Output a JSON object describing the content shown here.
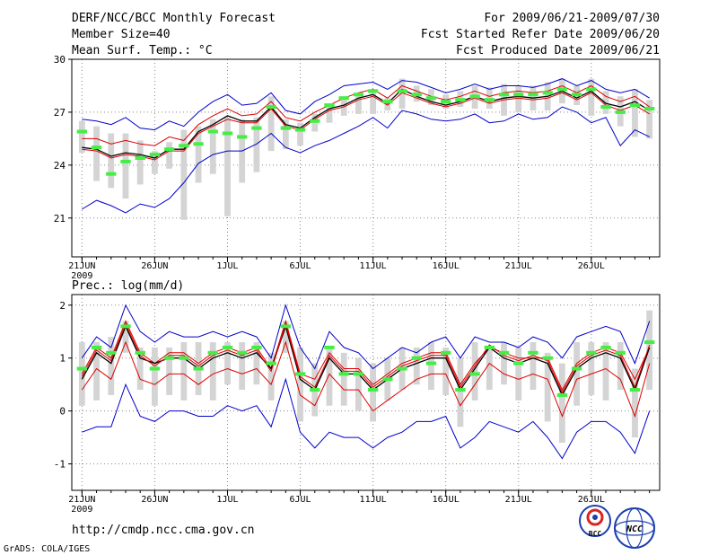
{
  "header": {
    "title": "DERF/NCC/BCC Monthly Forecast",
    "member_size": "Member Size=40",
    "variable": "Mean Surf. Temp.: °C",
    "period": "For 2009/06/21-2009/07/30",
    "fcst_started": "Fcst Started Refer Date 2009/06/20",
    "fcst_produced": "Fcst Produced Date 2009/06/21"
  },
  "footer": {
    "url": "http://cmdp.ncc.cma.gov.cn",
    "grads_credit": "GrADS: COLA/IGES",
    "logo_bcc_text": "BCC",
    "logo_ncc_text": "NCC"
  },
  "colors": {
    "envelope": "#0000cc",
    "lower_quantile": "#dd0000",
    "mean": "#000000",
    "box": "#d4d4d4",
    "marker": "#44ee44",
    "grid": "#888888"
  },
  "chart_data": [
    {
      "id": "temp",
      "type": "line",
      "title": "Mean Surf. Temp.: °C",
      "ylim": [
        18.8,
        30
      ],
      "yticks": [
        21,
        24,
        27,
        30
      ],
      "xlim": [
        0.3,
        40.7
      ],
      "xticks": [
        {
          "day": 1,
          "label": "21JUN"
        },
        {
          "day": 6,
          "label": "26JUN"
        },
        {
          "day": 11,
          "label": "1JUL"
        },
        {
          "day": 16,
          "label": "6JUL"
        },
        {
          "day": 21,
          "label": "11JUL"
        },
        {
          "day": 26,
          "label": "16JUL"
        },
        {
          "day": 31,
          "label": "21JUL"
        },
        {
          "day": 36,
          "label": "26JUL"
        }
      ],
      "year_label": "2009",
      "days": [
        1,
        2,
        3,
        4,
        5,
        6,
        7,
        8,
        9,
        10,
        11,
        12,
        13,
        14,
        15,
        16,
        17,
        18,
        19,
        20,
        21,
        22,
        23,
        24,
        25,
        26,
        27,
        28,
        29,
        30,
        31,
        32,
        33,
        34,
        35,
        36,
        37,
        38,
        39,
        40
      ],
      "series": [
        {
          "name": "max",
          "color": "#0000cc",
          "values": [
            26.6,
            26.5,
            26.3,
            26.7,
            26.1,
            26.0,
            26.5,
            26.2,
            27.0,
            27.6,
            28.0,
            27.4,
            27.5,
            28.1,
            27.1,
            26.9,
            27.6,
            28.0,
            28.5,
            28.6,
            28.7,
            28.3,
            28.8,
            28.7,
            28.4,
            28.1,
            28.3,
            28.6,
            28.3,
            28.5,
            28.5,
            28.4,
            28.6,
            28.9,
            28.5,
            28.8,
            28.3,
            28.1,
            28.3,
            27.8
          ]
        },
        {
          "name": "upper",
          "color": "#dd0000",
          "values": [
            25.5,
            25.5,
            25.2,
            25.4,
            25.2,
            25.1,
            25.6,
            25.4,
            26.3,
            26.8,
            27.2,
            26.8,
            26.9,
            27.6,
            26.7,
            26.5,
            27.0,
            27.4,
            27.8,
            28.1,
            28.3,
            27.8,
            28.5,
            28.2,
            27.9,
            27.7,
            27.9,
            28.2,
            27.9,
            28.1,
            28.2,
            28.1,
            28.2,
            28.5,
            28.1,
            28.5,
            27.9,
            27.6,
            27.9,
            27.3
          ]
        },
        {
          "name": "mean",
          "color": "#000000",
          "values": [
            25.0,
            24.9,
            24.5,
            24.7,
            24.6,
            24.4,
            24.9,
            24.9,
            25.9,
            26.3,
            26.8,
            26.5,
            26.5,
            27.3,
            26.3,
            26.1,
            26.7,
            27.2,
            27.4,
            27.8,
            28.0,
            27.5,
            28.3,
            27.9,
            27.6,
            27.4,
            27.6,
            27.9,
            27.6,
            27.8,
            27.9,
            27.8,
            27.9,
            28.2,
            27.8,
            28.2,
            27.5,
            27.3,
            27.6,
            27.1
          ]
        },
        {
          "name": "lower",
          "color": "#dd0000",
          "values": [
            24.9,
            24.8,
            24.4,
            24.6,
            24.5,
            24.3,
            24.8,
            24.8,
            25.8,
            26.2,
            26.6,
            26.4,
            26.4,
            27.2,
            26.2,
            26.0,
            26.6,
            27.1,
            27.3,
            27.7,
            27.9,
            27.4,
            28.1,
            27.8,
            27.5,
            27.3,
            27.5,
            27.8,
            27.5,
            27.7,
            27.8,
            27.7,
            27.8,
            28.1,
            27.7,
            28.1,
            27.4,
            27.1,
            27.4,
            26.9
          ]
        },
        {
          "name": "min",
          "color": "#0000cc",
          "values": [
            21.5,
            22.0,
            21.7,
            21.3,
            21.8,
            21.6,
            22.1,
            23.0,
            24.1,
            24.6,
            24.8,
            24.8,
            25.2,
            25.8,
            25.0,
            24.7,
            25.1,
            25.4,
            25.8,
            26.2,
            26.7,
            26.1,
            27.1,
            26.9,
            26.6,
            26.5,
            26.6,
            26.9,
            26.4,
            26.5,
            26.9,
            26.6,
            26.7,
            27.3,
            27.0,
            26.4,
            26.7,
            25.1,
            26.0,
            25.6
          ]
        }
      ],
      "boxes": {
        "low": [
          24.7,
          23.1,
          22.7,
          22.1,
          22.9,
          23.5,
          23.8,
          20.9,
          23.0,
          23.5,
          21.1,
          23.0,
          23.6,
          24.8,
          24.9,
          25.1,
          25.9,
          26.4,
          26.8,
          26.9,
          26.9,
          27.1,
          27.2,
          27.6,
          27.4,
          27.2,
          27.3,
          27.2,
          27.2,
          26.8,
          27.0,
          27.1,
          27.1,
          27.5,
          27.4,
          26.8,
          26.9,
          26.2,
          25.6,
          25.5
        ],
        "high": [
          26.5,
          26.2,
          25.8,
          25.8,
          25.4,
          24.8,
          25.3,
          26.0,
          26.2,
          26.6,
          26.7,
          26.6,
          26.7,
          27.9,
          26.6,
          26.4,
          26.9,
          27.3,
          27.9,
          28.0,
          28.2,
          27.8,
          28.9,
          28.5,
          28.3,
          28.0,
          28.2,
          28.5,
          28.4,
          28.6,
          28.5,
          28.5,
          28.7,
          28.9,
          28.5,
          28.9,
          28.2,
          27.9,
          28.3,
          27.7
        ]
      },
      "markers": [
        25.9,
        25.0,
        23.5,
        24.2,
        24.4,
        24.6,
        24.9,
        25.1,
        25.2,
        25.9,
        25.8,
        25.6,
        26.1,
        27.3,
        26.1,
        26.0,
        26.5,
        27.4,
        27.8,
        28.0,
        28.2,
        27.6,
        28.2,
        28.0,
        27.8,
        27.6,
        27.7,
        27.9,
        27.7,
        28.0,
        28.0,
        28.0,
        28.1,
        28.3,
        28.0,
        28.3,
        27.3,
        27.0,
        27.4,
        27.2
      ]
    },
    {
      "id": "prec",
      "type": "line",
      "title": "Prec.: log(mm/d)",
      "ylim": [
        -1.5,
        2.2
      ],
      "yticks": [
        -1,
        0,
        1,
        2
      ],
      "xlim": [
        0.3,
        40.7
      ],
      "xticks": [
        {
          "day": 1,
          "label": "21JUN"
        },
        {
          "day": 6,
          "label": "26JUN"
        },
        {
          "day": 11,
          "label": "1JUL"
        },
        {
          "day": 16,
          "label": "6JUL"
        },
        {
          "day": 21,
          "label": "11JUL"
        },
        {
          "day": 26,
          "label": "16JUL"
        },
        {
          "day": 31,
          "label": "21JUL"
        },
        {
          "day": 36,
          "label": "26JUL"
        }
      ],
      "year_label": "2009",
      "days": [
        1,
        2,
        3,
        4,
        5,
        6,
        7,
        8,
        9,
        10,
        11,
        12,
        13,
        14,
        15,
        16,
        17,
        18,
        19,
        20,
        21,
        22,
        23,
        24,
        25,
        26,
        27,
        28,
        29,
        30,
        31,
        32,
        33,
        34,
        35,
        36,
        37,
        38,
        39,
        40
      ],
      "series": [
        {
          "name": "max",
          "color": "#0000cc",
          "values": [
            1.0,
            1.4,
            1.2,
            2.0,
            1.5,
            1.3,
            1.5,
            1.4,
            1.4,
            1.5,
            1.4,
            1.5,
            1.4,
            1.0,
            2.0,
            1.2,
            0.8,
            1.5,
            1.2,
            1.1,
            0.8,
            1.0,
            1.2,
            1.1,
            1.3,
            1.4,
            1.0,
            1.4,
            1.3,
            1.3,
            1.2,
            1.4,
            1.3,
            1.0,
            1.4,
            1.5,
            1.6,
            1.5,
            0.9,
            1.7
          ]
        },
        {
          "name": "upper",
          "color": "#dd0000",
          "values": [
            0.7,
            1.2,
            1.0,
            1.7,
            1.1,
            0.9,
            1.1,
            1.1,
            0.9,
            1.1,
            1.2,
            1.1,
            1.2,
            0.8,
            1.7,
            0.7,
            0.6,
            1.1,
            0.8,
            0.8,
            0.5,
            0.7,
            0.9,
            1.0,
            1.1,
            1.1,
            0.5,
            0.9,
            1.2,
            1.1,
            1.0,
            1.0,
            1.0,
            0.4,
            0.9,
            1.1,
            1.2,
            1.1,
            0.6,
            1.2
          ]
        },
        {
          "name": "mean",
          "color": "#000000",
          "values": [
            0.6,
            1.1,
            0.9,
            1.6,
            1.0,
            0.9,
            1.0,
            1.0,
            0.8,
            1.0,
            1.1,
            1.0,
            1.1,
            0.8,
            1.6,
            0.6,
            0.4,
            1.0,
            0.7,
            0.7,
            0.4,
            0.6,
            0.8,
            0.9,
            1.0,
            1.0,
            0.4,
            0.8,
            1.2,
            1.0,
            0.9,
            1.0,
            0.9,
            0.3,
            0.8,
            1.0,
            1.1,
            1.0,
            0.4,
            1.2
          ]
        },
        {
          "name": "lower",
          "color": "#dd0000",
          "values": [
            0.4,
            0.8,
            0.6,
            1.3,
            0.6,
            0.5,
            0.7,
            0.7,
            0.5,
            0.7,
            0.8,
            0.7,
            0.8,
            0.5,
            1.3,
            0.3,
            0.1,
            0.7,
            0.4,
            0.4,
            0.0,
            0.2,
            0.4,
            0.6,
            0.7,
            0.7,
            0.1,
            0.5,
            0.9,
            0.7,
            0.6,
            0.7,
            0.6,
            -0.1,
            0.6,
            0.7,
            0.8,
            0.6,
            -0.1,
            0.9
          ]
        },
        {
          "name": "min",
          "color": "#0000cc",
          "values": [
            -0.4,
            -0.3,
            -0.3,
            0.5,
            -0.1,
            -0.2,
            0.0,
            0.0,
            -0.1,
            -0.1,
            0.1,
            0.0,
            0.1,
            -0.3,
            0.6,
            -0.4,
            -0.7,
            -0.4,
            -0.5,
            -0.5,
            -0.7,
            -0.5,
            -0.4,
            -0.2,
            -0.2,
            -0.1,
            -0.7,
            -0.5,
            -0.2,
            -0.3,
            -0.4,
            -0.2,
            -0.5,
            -0.9,
            -0.4,
            -0.2,
            -0.2,
            -0.4,
            -0.8,
            0.0
          ]
        },
        {
          "name": "extra_red",
          "color": "#dd0000",
          "values": [
            0.65,
            1.15,
            0.95,
            1.65,
            1.05,
            0.85,
            1.05,
            1.05,
            0.85,
            1.05,
            1.15,
            1.05,
            1.15,
            0.75,
            1.65,
            0.65,
            0.45,
            1.05,
            0.75,
            0.75,
            0.45,
            0.65,
            0.85,
            0.95,
            1.05,
            1.05,
            0.45,
            0.85,
            1.25,
            1.05,
            0.95,
            1.05,
            0.95,
            0.35,
            0.85,
            1.05,
            1.15,
            1.05,
            0.45,
            1.25
          ]
        }
      ],
      "boxes": {
        "low": [
          0.1,
          0.2,
          0.3,
          1.1,
          0.4,
          0.1,
          0.3,
          0.2,
          0.3,
          0.2,
          0.5,
          0.4,
          0.5,
          0.2,
          1.1,
          -0.2,
          -0.1,
          0.1,
          0.1,
          0.0,
          -0.2,
          0.2,
          0.4,
          0.5,
          0.4,
          0.3,
          -0.3,
          0.2,
          0.4,
          0.5,
          0.2,
          0.4,
          -0.2,
          -0.6,
          0.1,
          0.3,
          0.2,
          0.4,
          -0.5,
          0.4
        ],
        "high": [
          1.3,
          1.3,
          1.4,
          1.7,
          1.2,
          1.2,
          1.2,
          1.3,
          1.3,
          1.3,
          1.3,
          1.3,
          1.3,
          1.1,
          1.7,
          1.2,
          0.9,
          1.2,
          1.1,
          1.0,
          0.9,
          1.0,
          1.2,
          1.2,
          1.3,
          1.2,
          1.0,
          1.3,
          1.2,
          1.3,
          1.2,
          1.3,
          1.1,
          0.9,
          1.3,
          1.3,
          1.3,
          1.3,
          0.8,
          1.9
        ]
      },
      "markers": [
        0.8,
        1.2,
        1.1,
        1.6,
        1.1,
        0.8,
        1.0,
        1.0,
        0.8,
        1.1,
        1.2,
        1.1,
        1.2,
        0.9,
        1.6,
        0.7,
        0.4,
        1.2,
        0.7,
        0.7,
        0.4,
        0.6,
        0.8,
        1.0,
        0.9,
        1.1,
        0.4,
        0.7,
        1.2,
        1.1,
        0.9,
        1.1,
        1.0,
        0.3,
        0.8,
        1.1,
        1.2,
        1.1,
        0.4,
        1.3
      ]
    }
  ]
}
